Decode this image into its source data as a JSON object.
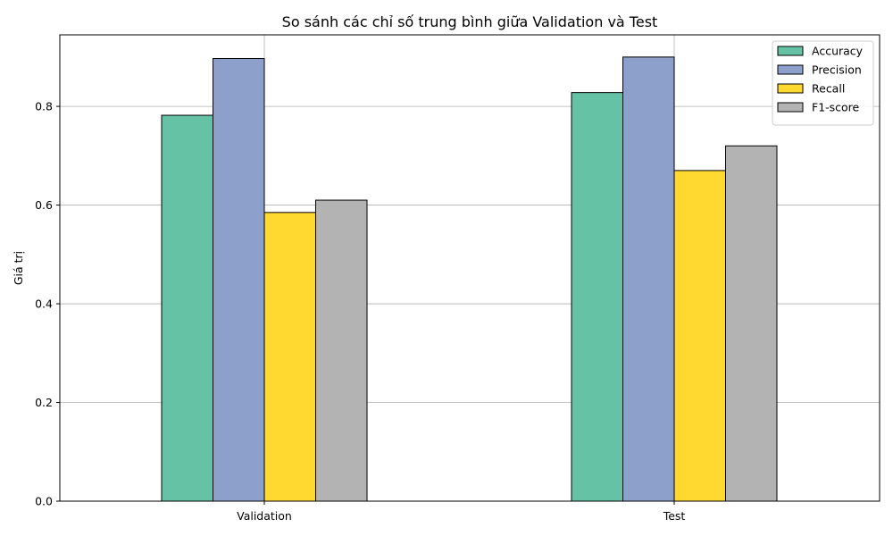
{
  "chart_data": {
    "type": "bar",
    "title": "So sánh các chỉ số trung bình giữa Validation và Test",
    "xlabel": "",
    "ylabel": "Giá trị",
    "categories": [
      "Validation",
      "Test"
    ],
    "series": [
      {
        "name": "Accuracy",
        "values": [
          0.782,
          0.828
        ],
        "color": "#66c2a5"
      },
      {
        "name": "Precision",
        "values": [
          0.897,
          0.9
        ],
        "color": "#8da0cb"
      },
      {
        "name": "Recall",
        "values": [
          0.585,
          0.67
        ],
        "color": "#ffd92f"
      },
      {
        "name": "F1-score",
        "values": [
          0.61,
          0.72
        ],
        "color": "#b3b3b3"
      }
    ],
    "ylim": [
      0,
      0.945
    ],
    "yticks": [
      0.0,
      0.2,
      0.4,
      0.6,
      0.8
    ],
    "ytick_labels": [
      "0.0",
      "0.2",
      "0.4",
      "0.6",
      "0.8"
    ],
    "grid": true,
    "legend_position": "top-right"
  }
}
